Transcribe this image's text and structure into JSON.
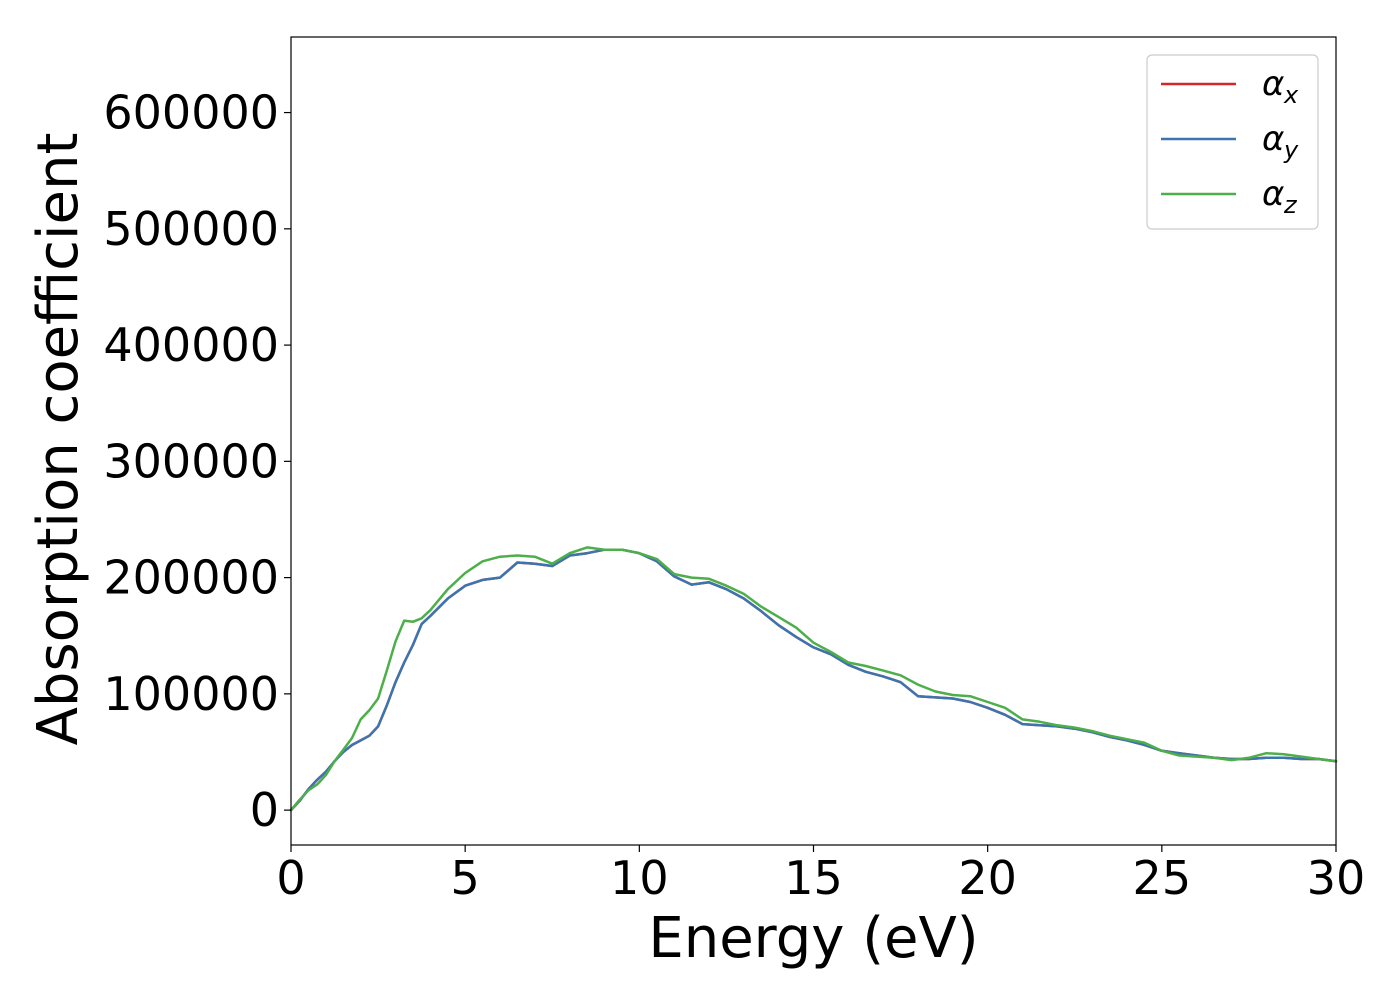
{
  "chart_data": {
    "type": "line",
    "title": "",
    "xlabel": "Energy (eV)",
    "ylabel": "Absorption coefficient",
    "xlim": [
      0,
      30
    ],
    "ylim": [
      -30000,
      665000
    ],
    "xticks": [
      0,
      5,
      10,
      15,
      20,
      25,
      30
    ],
    "yticks": [
      0,
      100000,
      200000,
      300000,
      400000,
      500000,
      600000
    ],
    "grid": false,
    "legend_position": "top-right",
    "series": [
      {
        "name": "α",
        "subscript": "x",
        "color": "#d62728",
        "x": [
          0,
          0.25,
          0.5,
          0.75,
          1.0,
          1.25,
          1.5,
          1.75,
          2.0,
          2.25,
          2.5,
          2.75,
          3.0,
          3.25,
          3.5,
          3.75,
          4.0,
          4.5,
          5.0,
          5.5,
          6.0,
          6.5,
          7.0,
          7.5,
          8.0,
          8.5,
          9.0,
          9.5,
          10.0,
          10.5,
          11.0,
          11.5,
          12.0,
          12.5,
          13.0,
          13.5,
          14.0,
          14.5,
          15.0,
          15.5,
          16.0,
          16.5,
          17.0,
          17.5,
          18.0,
          18.5,
          19.0,
          19.5,
          20.0,
          20.5,
          21.0,
          21.5,
          22.0,
          22.5,
          23.0,
          23.5,
          24.0,
          24.5,
          25.0,
          25.5,
          26.0,
          26.5,
          27.0,
          27.5,
          28.0,
          28.5,
          29.0,
          29.5,
          30.0
        ],
        "y": [
          0,
          8000,
          18000,
          26000,
          33000,
          42000,
          50000,
          56000,
          60000,
          64000,
          72000,
          90000,
          110000,
          127000,
          142000,
          160000,
          167000,
          182000,
          193000,
          198000,
          200000,
          213000,
          212000,
          210000,
          219000,
          221000,
          224000,
          224000,
          221000,
          214000,
          201000,
          194000,
          196000,
          190000,
          182000,
          171000,
          159000,
          149000,
          140000,
          134000,
          125000,
          119000,
          115000,
          110000,
          98000,
          97000,
          96000,
          93000,
          88000,
          82000,
          74000,
          73000,
          72000,
          70000,
          67000,
          63000,
          60000,
          56000,
          51000,
          49000,
          47000,
          45000,
          44000,
          44000,
          45000,
          45000,
          44000,
          44000,
          42000
        ]
      },
      {
        "name": "α",
        "subscript": "y",
        "color": "#3b75af",
        "x": [
          0,
          0.25,
          0.5,
          0.75,
          1.0,
          1.25,
          1.5,
          1.75,
          2.0,
          2.25,
          2.5,
          2.75,
          3.0,
          3.25,
          3.5,
          3.75,
          4.0,
          4.5,
          5.0,
          5.5,
          6.0,
          6.5,
          7.0,
          7.5,
          8.0,
          8.5,
          9.0,
          9.5,
          10.0,
          10.5,
          11.0,
          11.5,
          12.0,
          12.5,
          13.0,
          13.5,
          14.0,
          14.5,
          15.0,
          15.5,
          16.0,
          16.5,
          17.0,
          17.5,
          18.0,
          18.5,
          19.0,
          19.5,
          20.0,
          20.5,
          21.0,
          21.5,
          22.0,
          22.5,
          23.0,
          23.5,
          24.0,
          24.5,
          25.0,
          25.5,
          26.0,
          26.5,
          27.0,
          27.5,
          28.0,
          28.5,
          29.0,
          29.5,
          30.0
        ],
        "y": [
          0,
          8000,
          18000,
          26000,
          33000,
          42000,
          50000,
          56000,
          60000,
          64000,
          72000,
          90000,
          110000,
          127000,
          142000,
          160000,
          167000,
          182000,
          193000,
          198000,
          200000,
          213000,
          212000,
          210000,
          219000,
          221000,
          224000,
          224000,
          221000,
          214000,
          201000,
          194000,
          196000,
          190000,
          182000,
          171000,
          159000,
          149000,
          140000,
          134000,
          125000,
          119000,
          115000,
          110000,
          98000,
          97000,
          96000,
          93000,
          88000,
          82000,
          74000,
          73000,
          72000,
          70000,
          67000,
          63000,
          60000,
          56000,
          51000,
          49000,
          47000,
          45000,
          44000,
          44000,
          45000,
          45000,
          44000,
          44000,
          42000
        ]
      },
      {
        "name": "α",
        "subscript": "z",
        "color": "#4daf4a",
        "x": [
          0,
          0.25,
          0.5,
          0.75,
          1.0,
          1.25,
          1.5,
          1.75,
          2.0,
          2.25,
          2.5,
          2.75,
          3.0,
          3.25,
          3.5,
          3.75,
          4.0,
          4.5,
          5.0,
          5.5,
          6.0,
          6.5,
          7.0,
          7.5,
          8.0,
          8.5,
          9.0,
          9.5,
          10.0,
          10.5,
          11.0,
          11.5,
          12.0,
          12.5,
          13.0,
          13.5,
          14.0,
          14.5,
          15.0,
          15.5,
          16.0,
          16.5,
          17.0,
          17.5,
          18.0,
          18.5,
          19.0,
          19.5,
          20.0,
          20.5,
          21.0,
          21.5,
          22.0,
          22.5,
          23.0,
          23.5,
          24.0,
          24.5,
          25.0,
          25.5,
          26.0,
          26.5,
          27.0,
          27.5,
          28.0,
          28.5,
          29.0,
          29.5,
          30.0
        ],
        "y": [
          0,
          9000,
          17000,
          22000,
          30000,
          42000,
          52000,
          62000,
          78000,
          86000,
          96000,
          120000,
          145000,
          163000,
          162000,
          165000,
          172000,
          190000,
          204000,
          214000,
          218000,
          219000,
          218000,
          212000,
          221000,
          226000,
          224000,
          224000,
          221000,
          216000,
          203000,
          200000,
          199000,
          193000,
          186000,
          175000,
          166000,
          157000,
          144000,
          136000,
          127000,
          124000,
          120000,
          116000,
          108000,
          102000,
          99000,
          98000,
          93000,
          88000,
          78000,
          76000,
          73000,
          71000,
          68000,
          64000,
          61000,
          58000,
          51000,
          47000,
          46000,
          45000,
          43000,
          45000,
          49000,
          48000,
          46000,
          44000,
          42000
        ]
      }
    ]
  }
}
